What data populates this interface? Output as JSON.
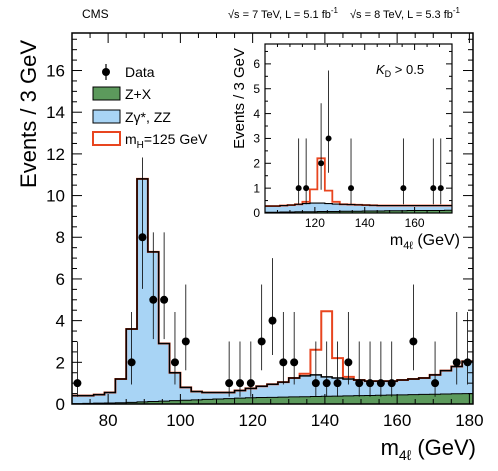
{
  "header": {
    "experiment": "CMS",
    "lumi_7": "√s = 7 TeV, L = 5.1 fb",
    "lumi_8": "√s = 8 TeV, L = 5.3 fb",
    "lumi_sup": "-1"
  },
  "colors": {
    "zx": "#5c9a5c",
    "zz": "#a8d4f5",
    "zz_stroke": "#000000",
    "signal": "#e8451f",
    "data": "#000000"
  },
  "chart_data": [
    {
      "type": "histogram",
      "xlabel_main": "m",
      "xlabel_sub": "4ℓ",
      "xlabel_unit": " (GeV)",
      "ylabel": "Events / 3 GeV",
      "xlim": [
        70,
        181
      ],
      "ylim": [
        0,
        17.8
      ],
      "xticks": [
        80,
        100,
        120,
        140,
        160,
        180
      ],
      "yticks": [
        0,
        2,
        4,
        6,
        8,
        10,
        12,
        14,
        16
      ],
      "bin_width": 3,
      "bin_edges_start": 70,
      "legend": {
        "position": "top-left",
        "entries": [
          {
            "key": "data",
            "label": "Data"
          },
          {
            "key": "zx",
            "label": "Z+X"
          },
          {
            "key": "zz",
            "label": "Zγ*, ZZ"
          },
          {
            "key": "signal",
            "label_main": "m",
            "label_sub": "H",
            "label_rest": "=125 GeV"
          }
        ]
      },
      "zx": [
        0.02,
        0.03,
        0.04,
        0.05,
        0.06,
        0.08,
        0.1,
        0.12,
        0.14,
        0.16,
        0.18,
        0.2,
        0.22,
        0.24,
        0.26,
        0.28,
        0.3,
        0.31,
        0.32,
        0.33,
        0.34,
        0.35,
        0.36,
        0.37,
        0.38,
        0.39,
        0.4,
        0.41,
        0.42,
        0.43,
        0.44,
        0.45,
        0.46,
        0.47,
        0.48,
        0.49,
        0.5
      ],
      "zz_total": [
        0.4,
        0.4,
        0.45,
        0.55,
        1.2,
        3.6,
        10.8,
        7.3,
        2.9,
        1.5,
        0.8,
        0.6,
        0.55,
        0.55,
        0.55,
        0.65,
        0.75,
        0.85,
        0.95,
        1.05,
        1.25,
        1.35,
        1.4,
        1.3,
        1.25,
        1.2,
        1.15,
        1.1,
        1.1,
        1.1,
        1.15,
        1.2,
        1.25,
        1.4,
        1.6,
        1.8,
        2.05
      ],
      "signal_total": [
        0.4,
        0.4,
        0.45,
        0.55,
        1.2,
        3.6,
        10.8,
        7.3,
        2.9,
        1.5,
        0.8,
        0.6,
        0.55,
        0.55,
        0.55,
        0.65,
        0.75,
        0.85,
        0.95,
        1.05,
        1.25,
        1.45,
        2.6,
        4.45,
        2.2,
        1.3,
        1.15,
        1.1,
        1.1,
        1.1,
        1.15,
        1.2,
        1.25,
        1.4,
        1.6,
        1.8,
        2.05
      ],
      "data": {
        "x": [
          71.5,
          86.5,
          89.5,
          92.5,
          95.5,
          98.5,
          101.5,
          113.5,
          116.5,
          119.5,
          122.5,
          125.5,
          128.5,
          131.5,
          137.5,
          140.5,
          143.5,
          146.5,
          149.5,
          152.5,
          155.5,
          158.5,
          164.5,
          170.5,
          176.5,
          179.5
        ],
        "y": [
          1,
          2,
          8,
          5,
          5,
          2,
          3,
          1,
          1,
          1,
          3,
          4,
          2,
          2,
          1,
          1,
          1,
          2,
          1,
          1,
          1,
          1,
          3,
          1,
          2,
          2
        ]
      }
    },
    {
      "type": "histogram",
      "annotation_main": "K",
      "annotation_sub": "D",
      "annotation_rest": " > 0.5",
      "xlabel_main": "m",
      "xlabel_sub": "4ℓ",
      "xlabel_unit": " (GeV)",
      "ylabel": "Events / 3 GeV",
      "xlim": [
        100,
        175
      ],
      "ylim": [
        0,
        6.8
      ],
      "xticks": [
        120,
        140,
        160
      ],
      "yticks": [
        0,
        1,
        2,
        3,
        4,
        5,
        6
      ],
      "bin_width": 3,
      "bin_edges_start": 100,
      "zx": [
        0.03,
        0.03,
        0.04,
        0.04,
        0.05,
        0.05,
        0.05,
        0.06,
        0.06,
        0.06,
        0.07,
        0.07,
        0.07,
        0.08,
        0.08,
        0.08,
        0.09,
        0.09,
        0.09,
        0.1,
        0.1,
        0.1,
        0.1,
        0.1,
        0.11
      ],
      "zz_total": [
        0.28,
        0.28,
        0.3,
        0.32,
        0.35,
        0.38,
        0.4,
        0.4,
        0.38,
        0.36,
        0.35,
        0.34,
        0.33,
        0.32,
        0.31,
        0.3,
        0.3,
        0.3,
        0.3,
        0.3,
        0.3,
        0.3,
        0.3,
        0.3,
        0.3
      ],
      "signal_total": [
        0.28,
        0.28,
        0.3,
        0.32,
        0.35,
        0.45,
        0.95,
        2.2,
        0.9,
        0.45,
        0.35,
        0.34,
        0.33,
        0.32,
        0.31,
        0.3,
        0.3,
        0.3,
        0.3,
        0.3,
        0.3,
        0.3,
        0.3,
        0.3,
        0.3
      ],
      "data": {
        "x": [
          113.5,
          116.5,
          122.5,
          125.5,
          134.5,
          155.5,
          167.5,
          170.5
        ],
        "y": [
          1,
          1,
          2,
          3,
          1,
          1,
          1,
          1
        ]
      }
    }
  ]
}
